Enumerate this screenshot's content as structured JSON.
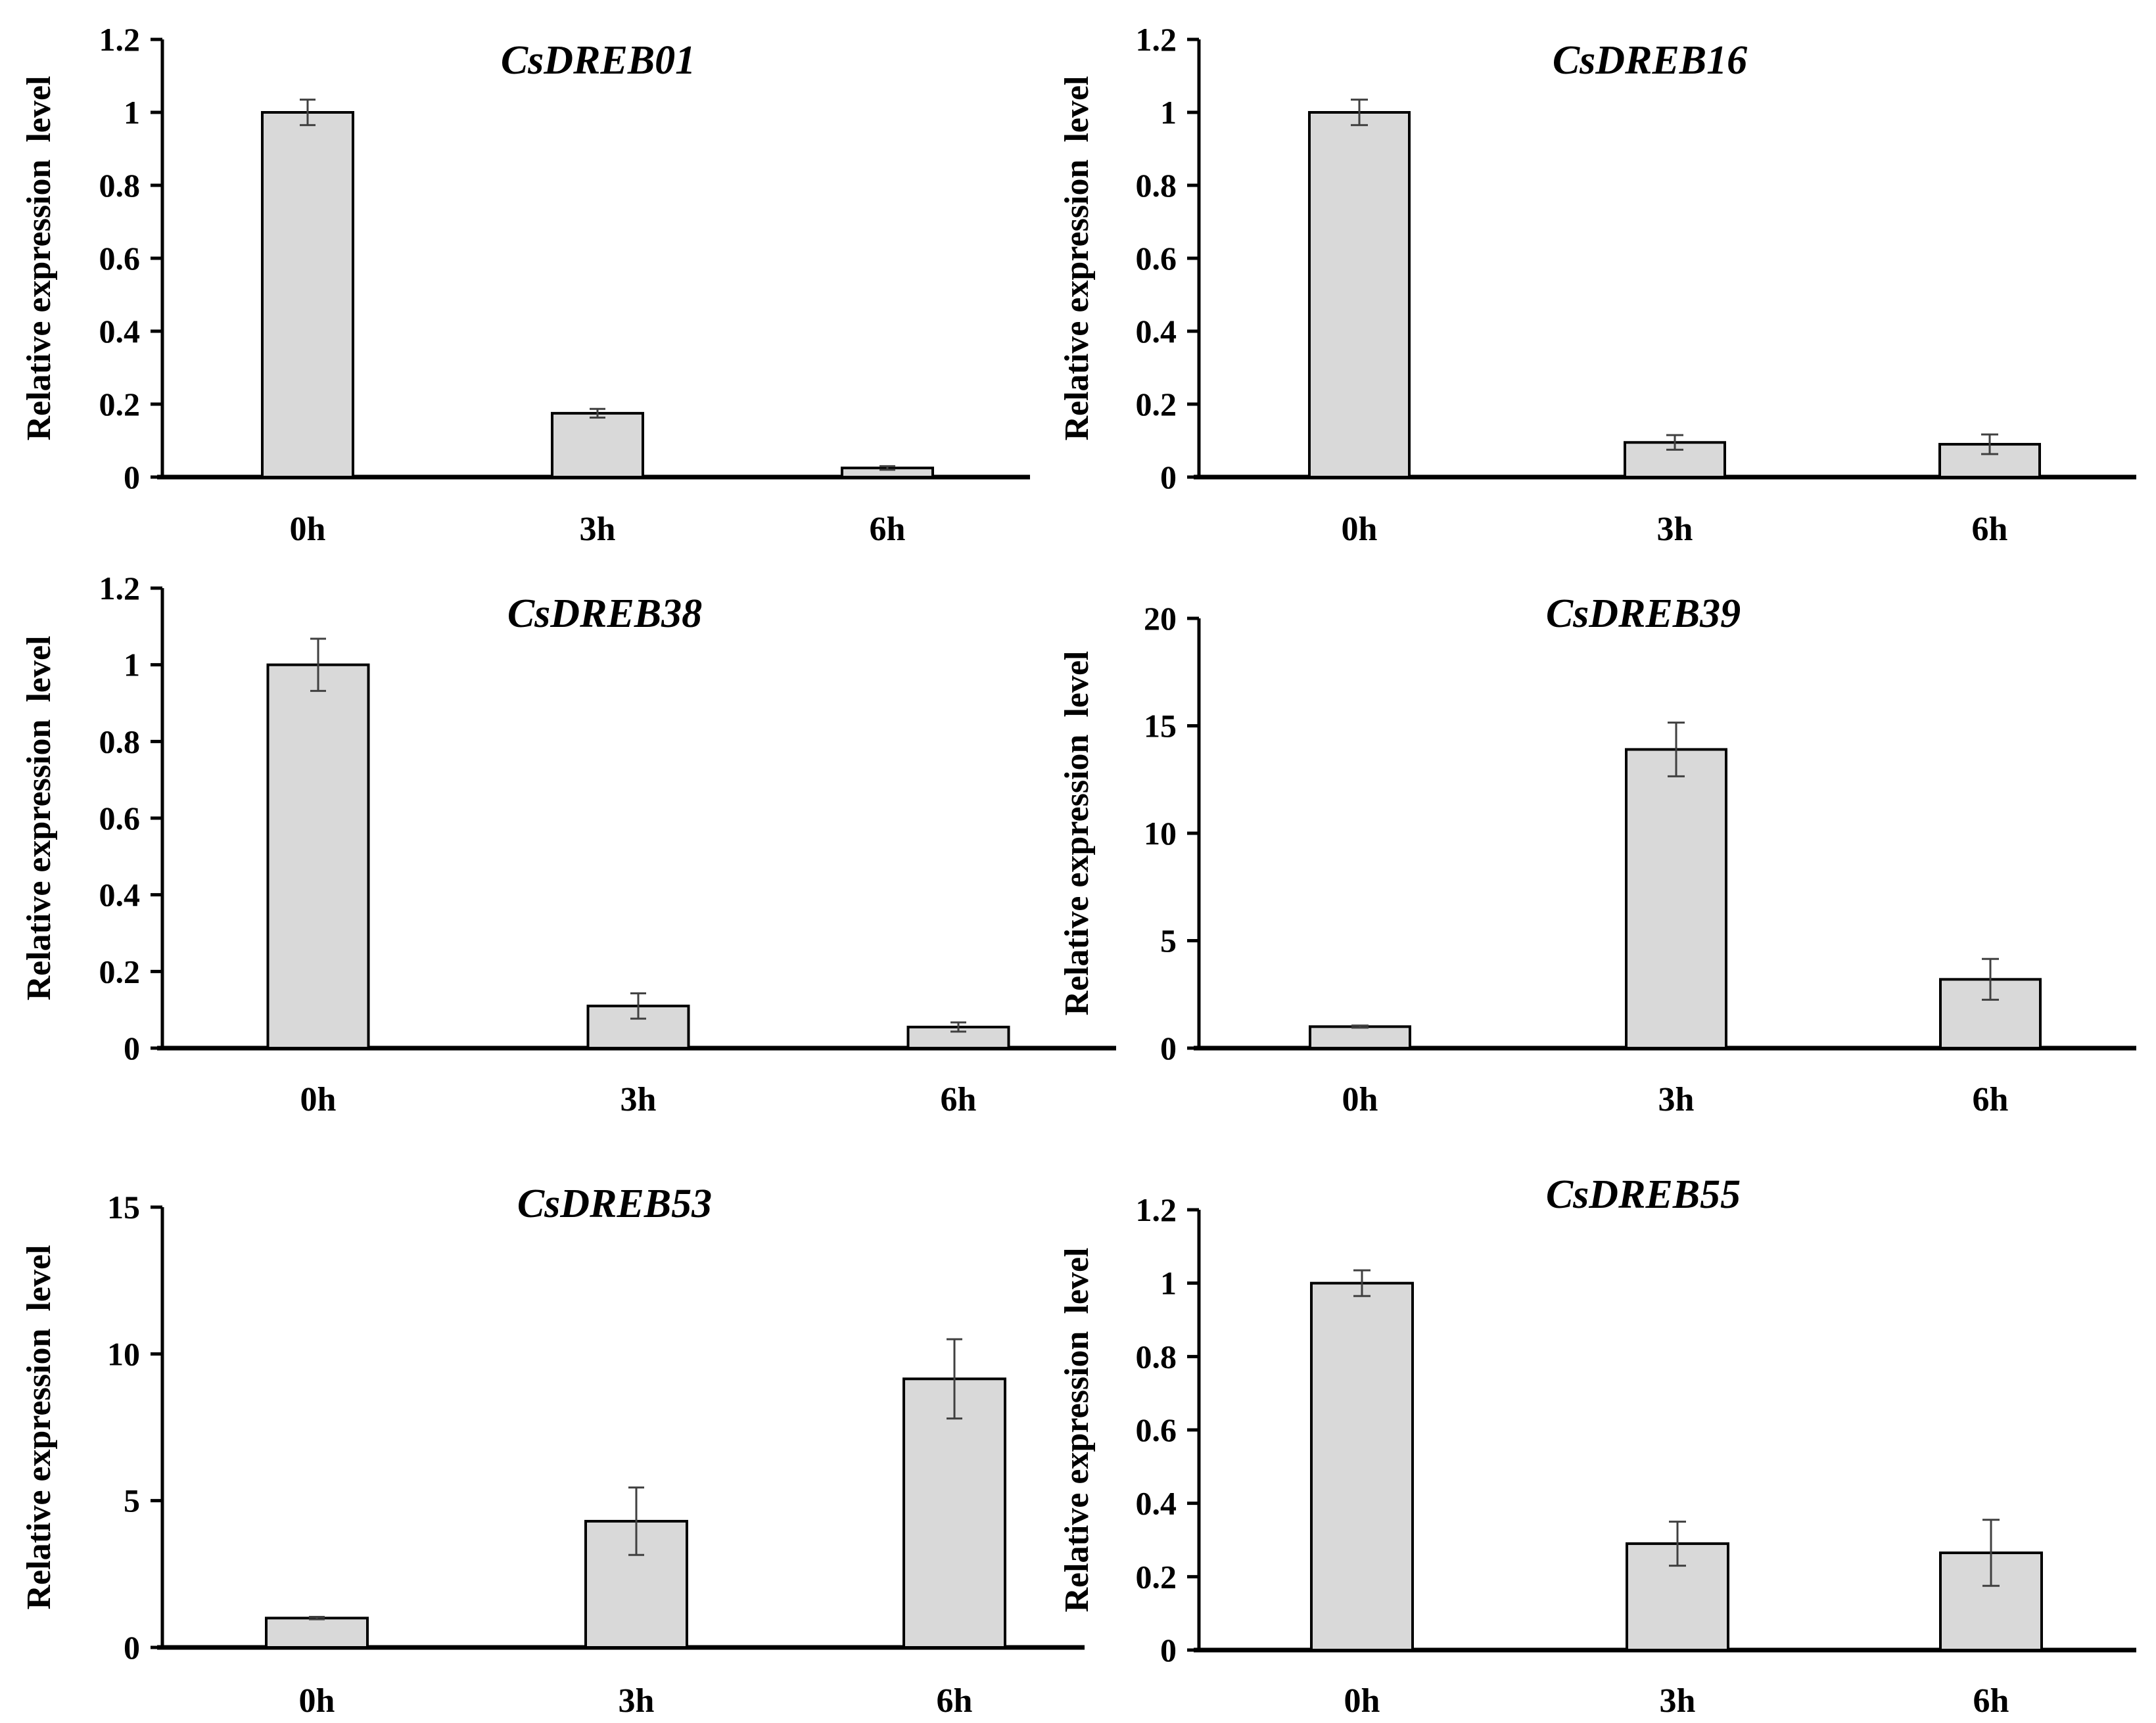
{
  "colors": {
    "bar_fill": "#d9d9d9",
    "bar_stroke": "#000000",
    "axis": "#000000",
    "error_bar": "#404040",
    "background": "#ffffff"
  },
  "chart_data": [
    {
      "type": "bar",
      "title": "CsDREB01",
      "ylabel": "Relative expression  level",
      "xlabel": "",
      "categories": [
        "0h",
        "3h",
        "6h"
      ],
      "values": [
        1.0,
        0.175,
        0.025
      ],
      "errors": [
        0.035,
        0.012,
        0.005
      ],
      "ylim": [
        0,
        1.2
      ],
      "yticks": [
        0,
        0.2,
        0.4,
        0.6,
        0.8,
        1,
        1.2
      ],
      "ytick_labels": [
        "0",
        "0.2",
        "0.4",
        "0.6",
        "0.8",
        "1",
        "1.2"
      ],
      "grid": false
    },
    {
      "type": "bar",
      "title": "CsDREB16",
      "ylabel": "Relative expression  level",
      "xlabel": "",
      "categories": [
        "0h",
        "3h",
        "6h"
      ],
      "values": [
        1.0,
        0.095,
        0.09
      ],
      "errors": [
        0.035,
        0.02,
        0.027
      ],
      "ylim": [
        0,
        1.2
      ],
      "yticks": [
        0,
        0.2,
        0.4,
        0.6,
        0.8,
        1,
        1.2
      ],
      "ytick_labels": [
        "0",
        "0.2",
        "0.4",
        "0.6",
        "0.8",
        "1",
        "1.2"
      ],
      "grid": false
    },
    {
      "type": "bar",
      "title": "CsDREB38",
      "ylabel": "Relative expression  level",
      "xlabel": "",
      "categories": [
        "0h",
        "3h",
        "6h"
      ],
      "values": [
        1.0,
        0.11,
        0.055
      ],
      "errors": [
        0.068,
        0.033,
        0.012
      ],
      "ylim": [
        0,
        1.2
      ],
      "yticks": [
        0,
        0.2,
        0.4,
        0.6,
        0.8,
        1,
        1.2
      ],
      "ytick_labels": [
        "0",
        "0.2",
        "0.4",
        "0.6",
        "0.8",
        "1",
        "1.2"
      ],
      "grid": false
    },
    {
      "type": "bar",
      "title": "CsDREB39",
      "ylabel": "Relative expression  level",
      "xlabel": "",
      "categories": [
        "0h",
        "3h",
        "6h"
      ],
      "values": [
        1.0,
        13.9,
        3.2
      ],
      "errors": [
        0.05,
        1.25,
        0.95
      ],
      "ylim": [
        0,
        20
      ],
      "yticks": [
        0,
        5,
        10,
        15,
        20
      ],
      "ytick_labels": [
        "0",
        "5",
        "10",
        "15",
        "20"
      ],
      "grid": false
    },
    {
      "type": "bar",
      "title": "CsDREB53",
      "ylabel": "Relative expression  level",
      "xlabel": "",
      "categories": [
        "0h",
        "3h",
        "6h"
      ],
      "values": [
        1.0,
        4.3,
        9.15
      ],
      "errors": [
        0.04,
        1.15,
        1.35
      ],
      "ylim": [
        0,
        15
      ],
      "yticks": [
        0,
        5,
        10,
        15
      ],
      "ytick_labels": [
        "0",
        "5",
        "10",
        "15"
      ],
      "grid": false
    },
    {
      "type": "bar",
      "title": "CsDREB55",
      "ylabel": "Relative expression  level",
      "xlabel": "",
      "categories": [
        "0h",
        "3h",
        "6h"
      ],
      "values": [
        1.0,
        0.29,
        0.265
      ],
      "errors": [
        0.035,
        0.06,
        0.09
      ],
      "ylim": [
        0,
        1.2
      ],
      "yticks": [
        0,
        0.2,
        0.4,
        0.6,
        0.8,
        1,
        1.2
      ],
      "ytick_labels": [
        "0",
        "0.2",
        "0.4",
        "0.6",
        "0.8",
        "1",
        "1.2"
      ],
      "grid": false
    }
  ]
}
